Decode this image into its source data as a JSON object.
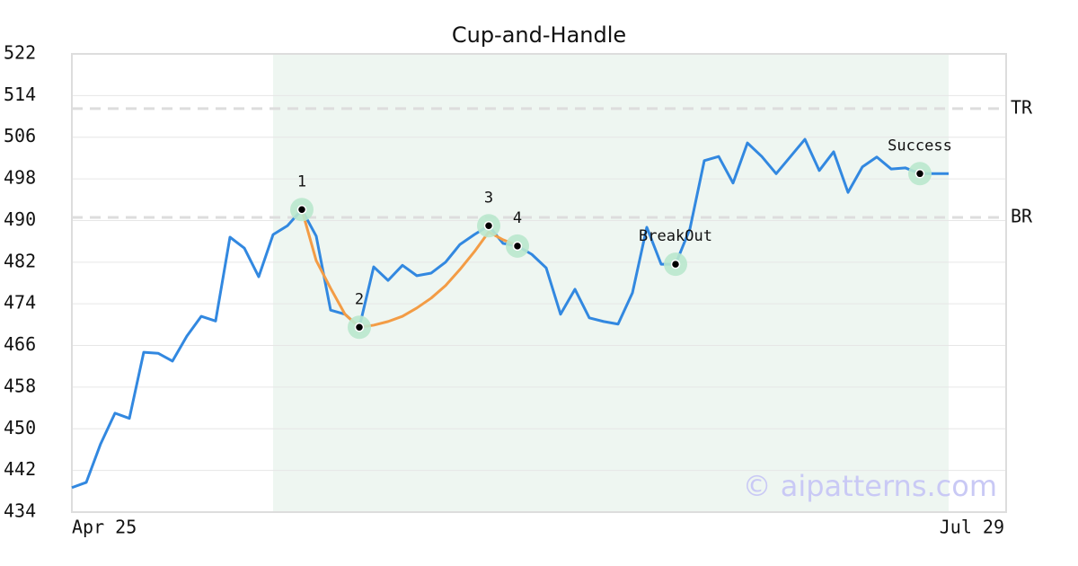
{
  "chart_data": {
    "type": "line",
    "title": "Cup-and-Handle",
    "categories": [
      "Apr 25",
      null,
      null,
      null,
      null,
      null,
      null,
      null,
      null,
      null,
      null,
      null,
      null,
      null,
      null,
      null,
      null,
      null,
      null,
      null,
      null,
      null,
      null,
      null,
      null,
      null,
      null,
      null,
      null,
      null,
      null,
      null,
      null,
      null,
      null,
      null,
      null,
      null,
      null,
      null,
      null,
      null,
      null,
      null,
      null,
      null,
      null,
      null,
      null,
      null,
      null,
      null,
      null,
      null,
      null,
      null,
      null,
      null,
      null,
      null,
      null,
      "Jul 29"
    ],
    "series": [
      {
        "color": "#3288e0",
        "values": [
          438.7,
          439.7,
          447.1,
          453,
          452,
          464.7,
          464.5,
          463,
          467.8,
          471.6,
          470.7,
          486.8,
          484.7,
          479.2,
          487.3,
          489,
          492.1,
          487,
          472.8,
          472,
          469.5,
          481.1,
          478.5,
          481.4,
          479.4,
          479.9,
          482,
          485.4,
          487.3,
          489,
          485.6,
          485.1,
          483.5,
          480.9,
          472,
          476.8,
          471.3,
          470.6,
          470.1,
          476.1,
          488.7,
          481.6,
          481.6,
          488.4,
          501.5,
          502.3,
          497.2,
          504.9,
          502.3,
          499,
          502.3,
          505.6,
          499.6,
          503.2,
          495.4,
          500.3,
          502.2,
          499.9,
          500.1,
          499,
          499,
          499
        ]
      },
      {
        "color": "#f39c45",
        "values": [
          null,
          null,
          null,
          null,
          null,
          null,
          null,
          null,
          null,
          null,
          null,
          null,
          null,
          null,
          null,
          null,
          492.1,
          482.3,
          477,
          472,
          469.5,
          469.9,
          470.6,
          471.6,
          473.2,
          475.1,
          477.5,
          480.6,
          484,
          487.8,
          486.3,
          485.2,
          null,
          null,
          null,
          null,
          null,
          null,
          null,
          null,
          null,
          null,
          null,
          null,
          null,
          null,
          null,
          null,
          null,
          null,
          null,
          null,
          null,
          null,
          null,
          null,
          null,
          null,
          null,
          null,
          null,
          null
        ]
      }
    ],
    "ylim": [
      434,
      522
    ],
    "yticks": [
      434,
      442,
      450,
      458,
      466,
      474,
      482,
      490,
      498,
      506,
      514,
      522
    ],
    "grid": true,
    "shade": {
      "from": 14,
      "to": 61,
      "color": "#eef6f1"
    },
    "reference_lines": [
      {
        "label": "TR",
        "value": 511.5
      },
      {
        "label": "BR",
        "value": 490.6
      }
    ],
    "annotations": [
      {
        "label": "1",
        "index": 16
      },
      {
        "label": "2",
        "index": 20
      },
      {
        "label": "3",
        "index": 29
      },
      {
        "label": "4",
        "index": 31
      },
      {
        "label": "BreakOut",
        "index": 42
      },
      {
        "label": "Success",
        "index": 59
      }
    ],
    "watermark": "© aipatterns.com"
  }
}
